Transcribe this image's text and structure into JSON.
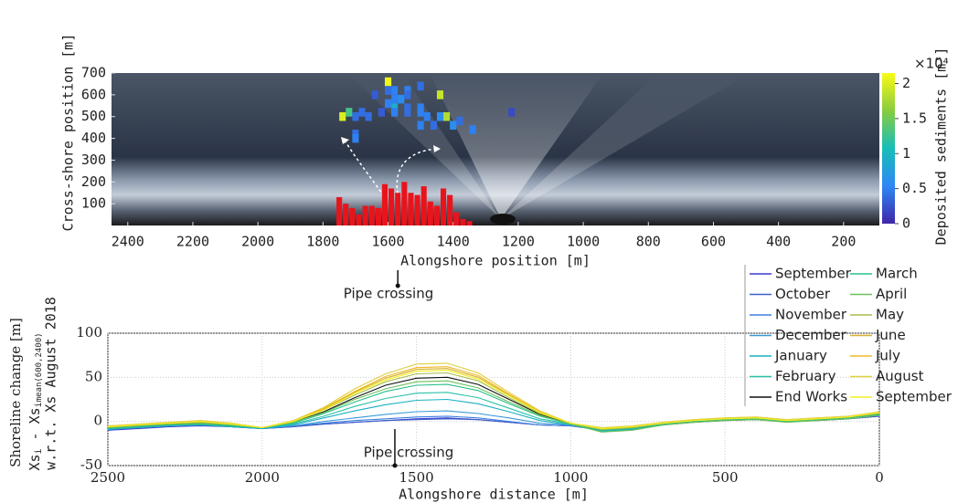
{
  "chart_data": [
    {
      "type": "heatmap",
      "y_label": "Cross-shore position [m]",
      "x_label": "Alongshore position [m]",
      "xlim": [
        2450,
        90
      ],
      "ylim": [
        0,
        700
      ],
      "xticks": [
        2400,
        2200,
        2000,
        1800,
        1600,
        1400,
        1200,
        1000,
        800,
        600,
        400,
        200
      ],
      "yticks": [
        100,
        200,
        300,
        400,
        500,
        600,
        700
      ],
      "cells": {
        "x": [
          1600,
          1600,
          1580,
          1540,
          1500,
          1640,
          1580,
          1560,
          1540,
          1440,
          1600,
          1580,
          1540,
          1500,
          1720,
          1680,
          1620,
          1580,
          1540,
          1500,
          1220,
          1740,
          1700,
          1660,
          1480,
          1440,
          1420,
          1380,
          1500,
          1460,
          1400,
          1340,
          1700,
          1700
        ],
        "y": [
          660,
          620,
          620,
          620,
          640,
          600,
          580,
          580,
          600,
          600,
          560,
          540,
          540,
          540,
          520,
          520,
          520,
          520,
          520,
          520,
          520,
          500,
          500,
          500,
          500,
          500,
          500,
          480,
          460,
          460,
          460,
          440,
          420,
          400
        ],
        "values": [
          2.1,
          0.4,
          0.5,
          0.5,
          0.4,
          0.3,
          0.5,
          0.6,
          0.4,
          1.9,
          0.5,
          0.9,
          0.4,
          0.5,
          1.3,
          0.4,
          0.3,
          0.5,
          0.4,
          0.5,
          0.2,
          2.0,
          0.4,
          0.4,
          0.5,
          0.6,
          1.8,
          0.4,
          0.5,
          0.4,
          0.6,
          0.5,
          0.4,
          0.5
        ]
      },
      "bars": {
        "color": "#e8141c",
        "x": [
          1750,
          1730,
          1710,
          1690,
          1670,
          1650,
          1630,
          1610,
          1590,
          1570,
          1550,
          1530,
          1510,
          1490,
          1470,
          1450,
          1430,
          1410,
          1390,
          1370,
          1350
        ],
        "values": [
          130,
          100,
          80,
          50,
          90,
          90,
          80,
          190,
          170,
          150,
          200,
          150,
          140,
          180,
          110,
          90,
          170,
          140,
          60,
          30,
          20
        ]
      },
      "colormap": [
        "#3e26a8",
        "#2e87f5",
        "#17beb8",
        "#88cc40",
        "#f9fb15"
      ],
      "clim": [
        0,
        2.15
      ],
      "cticks": [
        0,
        0.5,
        1,
        1.5,
        2
      ],
      "colorbar_label": "Deposited sediments [m³]",
      "colorbar_multiplier": "×10⁴",
      "annotation": {
        "text": "Pipe crossing",
        "x": 1570
      }
    },
    {
      "type": "line",
      "y_label": "Shoreline change [m]",
      "y_label_parts": [
        "Xs",
        "i",
        " - Xs",
        "i",
        "mean(600,2400)"
      ],
      "y_label_note": "w.r.t. Xs August 2018",
      "x_label": "Alongshore distance [m]",
      "xlim": [
        2500,
        0
      ],
      "ylim": [
        -50,
        100
      ],
      "xticks": [
        2500,
        2000,
        1500,
        1000,
        500,
        0
      ],
      "yticks": [
        -50,
        0,
        50,
        100
      ],
      "grid": true,
      "annotation": {
        "text": "Pipe crossing",
        "x": 1570
      },
      "x": [
        2500,
        2400,
        2300,
        2200,
        2100,
        2000,
        1900,
        1800,
        1700,
        1600,
        1500,
        1400,
        1300,
        1200,
        1100,
        1000,
        900,
        800,
        700,
        600,
        500,
        400,
        300,
        200,
        100,
        0
      ],
      "series": [
        {
          "name": "September",
          "color": "#3b3bd1",
          "values": [
            -10,
            -8,
            -6,
            -5,
            -6,
            -8,
            -6,
            -3,
            -1,
            1,
            3,
            4,
            2,
            -1,
            -4,
            -5,
            -9,
            -8,
            -4,
            -1,
            1,
            2,
            0,
            1,
            3,
            6
          ]
        },
        {
          "name": "October",
          "color": "#4060c8",
          "values": [
            -9,
            -7,
            -5,
            -4,
            -6,
            -8,
            -6,
            -3,
            -1,
            1,
            2,
            3,
            2,
            -1,
            -4,
            -5,
            -10,
            -7,
            -3,
            0,
            2,
            3,
            1,
            2,
            4,
            7
          ]
        },
        {
          "name": "November",
          "color": "#3d7fe0",
          "values": [
            -8,
            -6,
            -4,
            -3,
            -5,
            -8,
            -5,
            -2,
            1,
            3,
            5,
            6,
            4,
            0,
            -4,
            -5,
            -10,
            -8,
            -3,
            0,
            2,
            3,
            0,
            2,
            4,
            8
          ]
        },
        {
          "name": "December",
          "color": "#3a9ad8",
          "values": [
            -8,
            -6,
            -4,
            -3,
            -5,
            -8,
            -5,
            0,
            4,
            8,
            11,
            12,
            9,
            4,
            -2,
            -4,
            -10,
            -8,
            -3,
            1,
            3,
            4,
            1,
            3,
            5,
            9
          ]
        },
        {
          "name": "January",
          "color": "#1ab0c4",
          "values": [
            -9,
            -7,
            -5,
            -4,
            -6,
            -8,
            -4,
            4,
            12,
            19,
            24,
            25,
            20,
            11,
            1,
            -4,
            -11,
            -9,
            -4,
            0,
            2,
            3,
            0,
            2,
            4,
            7
          ]
        },
        {
          "name": "February",
          "color": "#2cc0a8",
          "values": [
            -8,
            -6,
            -4,
            -3,
            -5,
            -7,
            -3,
            6,
            17,
            26,
            32,
            33,
            27,
            15,
            3,
            -3,
            -10,
            -8,
            -3,
            0,
            2,
            3,
            0,
            2,
            4,
            8
          ]
        },
        {
          "name": "End Works",
          "color": "#111111",
          "values": [
            -7,
            -5,
            -3,
            -2,
            -4,
            -7,
            -1,
            11,
            27,
            41,
            49,
            50,
            42,
            25,
            8,
            -3,
            -9,
            -7,
            -2,
            1,
            3,
            4,
            1,
            3,
            5,
            9
          ]
        },
        {
          "name": "March",
          "color": "#28c08a",
          "values": [
            -8,
            -6,
            -4,
            -3,
            -5,
            -7,
            -2,
            9,
            22,
            34,
            41,
            42,
            35,
            20,
            6,
            -3,
            -10,
            -8,
            -3,
            0,
            2,
            3,
            0,
            2,
            4,
            8
          ]
        },
        {
          "name": "April",
          "color": "#6cc05a",
          "values": [
            -7,
            -5,
            -3,
            -2,
            -4,
            -7,
            -1,
            10,
            25,
            37,
            45,
            46,
            38,
            22,
            7,
            -3,
            -12,
            -10,
            -4,
            -1,
            1,
            2,
            -1,
            1,
            3,
            7
          ]
        },
        {
          "name": "May",
          "color": "#a8be4a",
          "values": [
            -6,
            -4,
            -2,
            -1,
            -3,
            -7,
            0,
            13,
            30,
            45,
            54,
            55,
            46,
            27,
            9,
            -2,
            -9,
            -7,
            -2,
            1,
            3,
            4,
            1,
            3,
            5,
            9
          ]
        },
        {
          "name": "June",
          "color": "#d8b030",
          "values": [
            -6,
            -4,
            -2,
            0,
            -3,
            -7,
            0,
            14,
            33,
            49,
            59,
            60,
            50,
            30,
            10,
            -2,
            -8,
            -6,
            -2,
            1,
            3,
            4,
            1,
            3,
            5,
            10
          ]
        },
        {
          "name": "July",
          "color": "#f0b828",
          "values": [
            -5,
            -3,
            -1,
            1,
            -2,
            -7,
            0,
            15,
            34,
            51,
            61,
            62,
            52,
            31,
            11,
            -2,
            -8,
            -6,
            -1,
            2,
            4,
            5,
            2,
            4,
            6,
            10
          ]
        },
        {
          "name": "August",
          "color": "#e0d040",
          "values": [
            -5,
            -3,
            -1,
            1,
            -2,
            -7,
            1,
            16,
            37,
            54,
            65,
            66,
            55,
            33,
            12,
            -2,
            -7,
            -5,
            -1,
            2,
            4,
            5,
            2,
            4,
            6,
            11
          ]
        },
        {
          "name": "September",
          "color": "#f2f020",
          "values": [
            -6,
            -4,
            -2,
            0,
            -3,
            -7,
            0,
            13,
            32,
            47,
            57,
            58,
            48,
            29,
            10,
            -2,
            -8,
            -6,
            -2,
            1,
            3,
            4,
            1,
            3,
            5,
            10
          ]
        }
      ]
    }
  ]
}
